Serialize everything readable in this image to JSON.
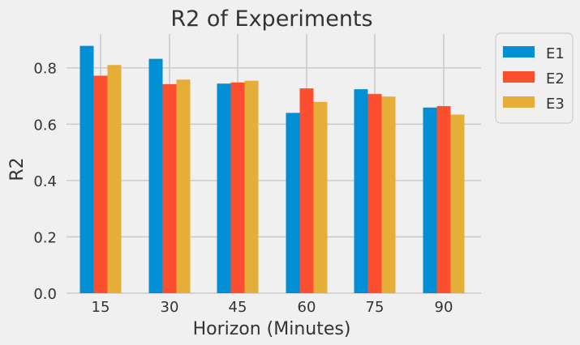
{
  "chart_data": {
    "type": "bar",
    "title": "R2 of Experiments",
    "xlabel": "Horizon (Minutes)",
    "ylabel": "R2",
    "categories": [
      "15",
      "30",
      "45",
      "60",
      "75",
      "90"
    ],
    "series": [
      {
        "name": "E1",
        "values": [
          0.878,
          0.832,
          0.744,
          0.64,
          0.724,
          0.659
        ]
      },
      {
        "name": "E2",
        "values": [
          0.772,
          0.742,
          0.748,
          0.727,
          0.707,
          0.664
        ]
      },
      {
        "name": "E3",
        "values": [
          0.81,
          0.758,
          0.754,
          0.679,
          0.698,
          0.634
        ]
      }
    ],
    "colors": [
      "#008fd5",
      "#fc4f30",
      "#e5ae38"
    ],
    "ylim": [
      0,
      0.92
    ],
    "yticks": [
      0.0,
      0.2,
      0.4,
      0.6,
      0.8
    ],
    "ytick_labels": [
      "0.0",
      "0.2",
      "0.4",
      "0.6",
      "0.8"
    ],
    "grid": true,
    "legend_position": "outside top-right"
  }
}
